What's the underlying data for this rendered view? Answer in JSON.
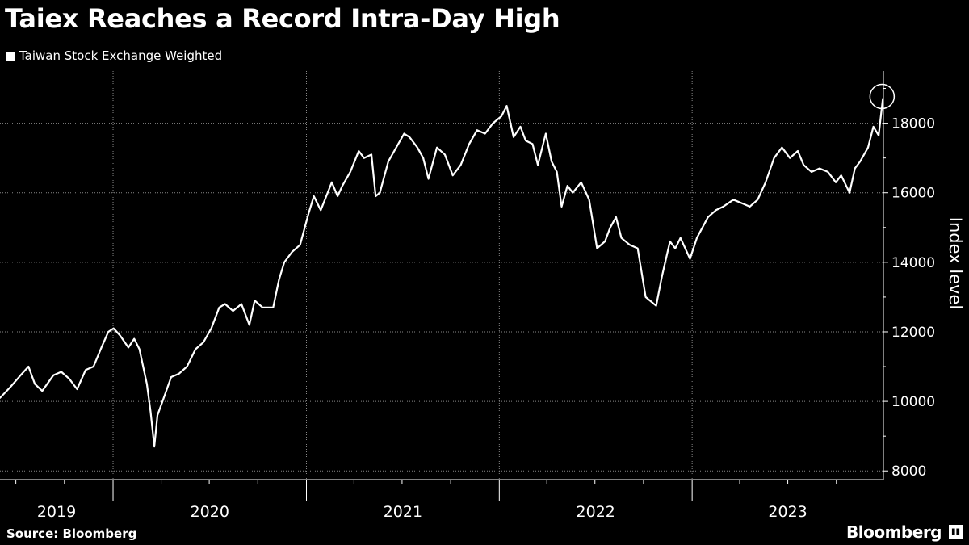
{
  "title": "Taiex Reaches a Record Intra-Day High",
  "source": "Source: Bloomberg",
  "brand": "Bloomberg",
  "brand_icon": "chart-badge-icon",
  "colors": {
    "background": "#000000",
    "line": "#ffffff",
    "grid": "#888888"
  },
  "chart_data": {
    "type": "line",
    "title": "Taiex Reaches a Record Intra-Day High",
    "xlabel": "",
    "ylabel": "Index level",
    "legend_position": "top-left",
    "grid": true,
    "x_tick_labels": [
      "2019",
      "2020",
      "2021",
      "2022",
      "2023"
    ],
    "y_ticks": [
      8000,
      10000,
      12000,
      14000,
      16000,
      18000
    ],
    "y_tick_labels": [
      "8000",
      "10000",
      "12000",
      "14000",
      "16000",
      "18000"
    ],
    "xlim": [
      "2019-06-01",
      "2023-12-29"
    ],
    "ylim": [
      7750,
      19500
    ],
    "annotation": {
      "type": "circle",
      "x": "2023-12-28",
      "y": 18700
    },
    "series": [
      {
        "name": "Taiwan Stock Exchange Weighted",
        "x": [
          "2019-06-01",
          "2019-06-20",
          "2019-07-10",
          "2019-07-25",
          "2019-08-06",
          "2019-08-20",
          "2019-09-10",
          "2019-09-25",
          "2019-10-10",
          "2019-10-25",
          "2019-11-10",
          "2019-11-25",
          "2019-12-10",
          "2019-12-23",
          "2020-01-02",
          "2020-01-14",
          "2020-01-30",
          "2020-02-10",
          "2020-02-20",
          "2020-03-05",
          "2020-03-12",
          "2020-03-19",
          "2020-03-25",
          "2020-04-06",
          "2020-04-20",
          "2020-05-05",
          "2020-05-20",
          "2020-06-05",
          "2020-06-20",
          "2020-07-05",
          "2020-07-20",
          "2020-07-31",
          "2020-08-15",
          "2020-08-31",
          "2020-09-15",
          "2020-09-25",
          "2020-10-10",
          "2020-10-30",
          "2020-11-10",
          "2020-11-20",
          "2020-12-05",
          "2020-12-20",
          "2021-01-05",
          "2021-01-15",
          "2021-01-28",
          "2021-02-18",
          "2021-03-01",
          "2021-03-10",
          "2021-03-25",
          "2021-04-10",
          "2021-04-20",
          "2021-05-04",
          "2021-05-12",
          "2021-05-20",
          "2021-06-05",
          "2021-06-20",
          "2021-07-05",
          "2021-07-15",
          "2021-07-30",
          "2021-08-10",
          "2021-08-20",
          "2021-09-05",
          "2021-09-20",
          "2021-10-05",
          "2021-10-20",
          "2021-11-05",
          "2021-11-20",
          "2021-12-05",
          "2021-12-20",
          "2022-01-05",
          "2022-01-15",
          "2022-01-28",
          "2022-02-10",
          "2022-02-20",
          "2022-03-05",
          "2022-03-15",
          "2022-03-30",
          "2022-04-10",
          "2022-04-20",
          "2022-04-29",
          "2022-05-10",
          "2022-05-20",
          "2022-06-05",
          "2022-06-20",
          "2022-07-05",
          "2022-07-20",
          "2022-07-30",
          "2022-08-10",
          "2022-08-20",
          "2022-09-05",
          "2022-09-20",
          "2022-10-05",
          "2022-10-25",
          "2022-11-05",
          "2022-11-20",
          "2022-11-30",
          "2022-12-10",
          "2022-12-28",
          "2023-01-10",
          "2023-01-31",
          "2023-02-15",
          "2023-03-01",
          "2023-03-20",
          "2023-04-05",
          "2023-04-20",
          "2023-05-05",
          "2023-05-20",
          "2023-06-05",
          "2023-06-20",
          "2023-07-05",
          "2023-07-20",
          "2023-07-31",
          "2023-08-15",
          "2023-08-30",
          "2023-09-15",
          "2023-09-30",
          "2023-10-10",
          "2023-10-26",
          "2023-11-05",
          "2023-11-15",
          "2023-11-30",
          "2023-12-10",
          "2023-12-20",
          "2023-12-28"
        ],
        "y": [
          10100,
          10400,
          10750,
          11000,
          10500,
          10300,
          10750,
          10850,
          10650,
          10350,
          10900,
          11000,
          11550,
          12000,
          12100,
          11900,
          11550,
          11800,
          11500,
          10500,
          9700,
          8700,
          9600,
          10100,
          10700,
          10800,
          11000,
          11500,
          11700,
          12100,
          12700,
          12800,
          12600,
          12800,
          12200,
          12900,
          12700,
          12700,
          13500,
          14000,
          14300,
          14500,
          15400,
          15900,
          15500,
          16300,
          15900,
          16200,
          16600,
          17200,
          17000,
          17100,
          15900,
          16000,
          16900,
          17300,
          17700,
          17600,
          17300,
          17000,
          16400,
          17300,
          17100,
          16500,
          16800,
          17400,
          17800,
          17700,
          18000,
          18200,
          18500,
          17600,
          17900,
          17500,
          17400,
          16800,
          17700,
          16900,
          16600,
          15600,
          16200,
          16000,
          16300,
          15800,
          14400,
          14600,
          15000,
          15300,
          14700,
          14500,
          14400,
          13000,
          12750,
          13600,
          14600,
          14400,
          14700,
          14100,
          14700,
          15300,
          15500,
          15600,
          15800,
          15700,
          15600,
          15800,
          16300,
          17000,
          17300,
          17000,
          17200,
          16800,
          16600,
          16700,
          16600,
          16300,
          16500,
          16000,
          16700,
          16900,
          17300,
          17900,
          17650,
          18700
        ]
      }
    ]
  }
}
